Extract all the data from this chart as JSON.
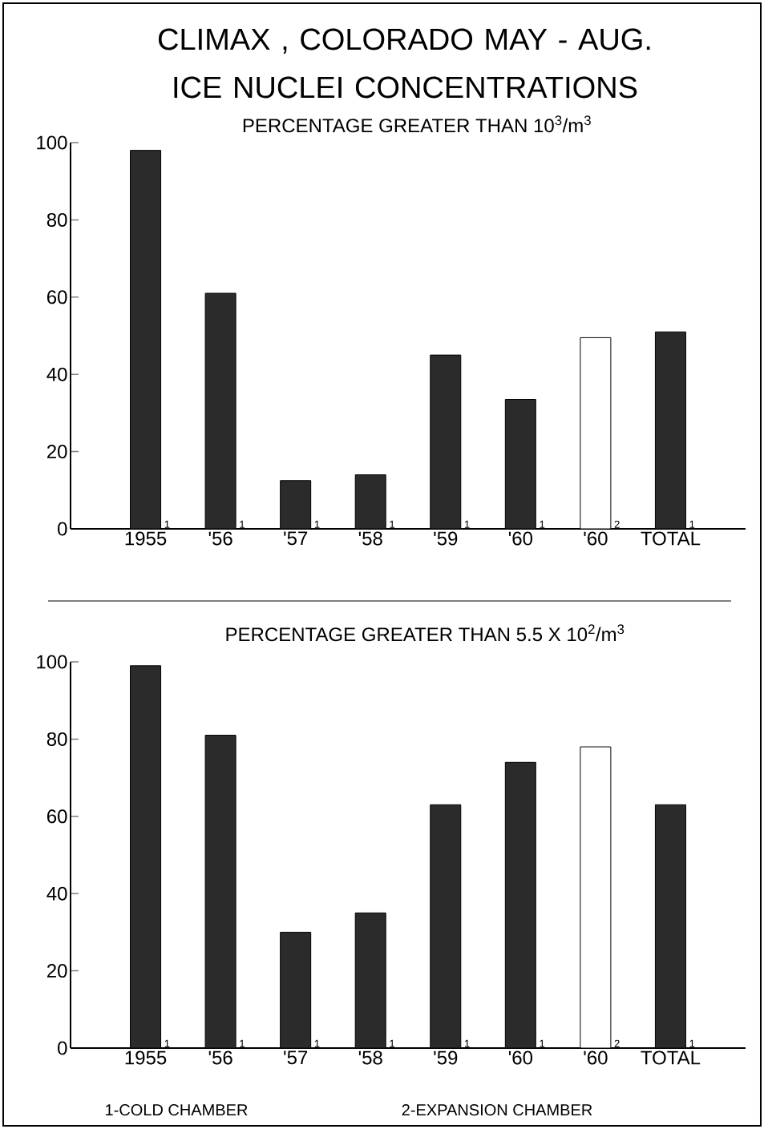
{
  "chart_data": [
    {
      "type": "bar",
      "title": "CLIMAX , COLORADO MAY - AUG. ICE NUCLEI CONCENTRATIONS",
      "subtitle": "PERCENTAGE GREATER THAN 10$^{3}$/m$^{3}$",
      "categories": [
        "1955",
        "'56",
        "'57",
        "'58",
        "'59",
        "'60",
        "'60",
        "TOTAL"
      ],
      "values": [
        98,
        61,
        12.5,
        14,
        45,
        33.5,
        49.5,
        51
      ],
      "colors": [
        "#2b2b2b",
        "#2b2b2b",
        "#2b2b2b",
        "#2b2b2b",
        "#2b2b2b",
        "#2b2b2b",
        "#ffffff",
        "#2b2b2b"
      ],
      "ylim": [
        0,
        100
      ],
      "yticks": [
        0,
        20,
        40,
        60,
        80,
        100
      ],
      "annotations": [
        "1",
        "1",
        "1",
        "1",
        "1",
        "1",
        "2",
        "1"
      ]
    },
    {
      "type": "bar",
      "title": "PERCENTAGE GREATER THAN 5.5 X 10$^{2}$/m$^{3}$",
      "categories": [
        "1955",
        "'56",
        "'57",
        "'58",
        "'59",
        "'60",
        "'60",
        "TOTAL"
      ],
      "values": [
        99,
        81,
        30,
        35,
        63,
        74,
        78,
        63
      ],
      "colors": [
        "#2b2b2b",
        "#2b2b2b",
        "#2b2b2b",
        "#2b2b2b",
        "#2b2b2b",
        "#2b2b2b",
        "#ffffff",
        "#2b2b2b"
      ],
      "ylim": [
        0,
        100
      ],
      "yticks": [
        0,
        20,
        40,
        60,
        80,
        100
      ],
      "annotations": [
        "1",
        "1",
        "1",
        "1",
        "1",
        "1",
        "2",
        "1",
        "1-COLD CHAMBER",
        "2-EXPANSION CHAMBER"
      ]
    }
  ]
}
